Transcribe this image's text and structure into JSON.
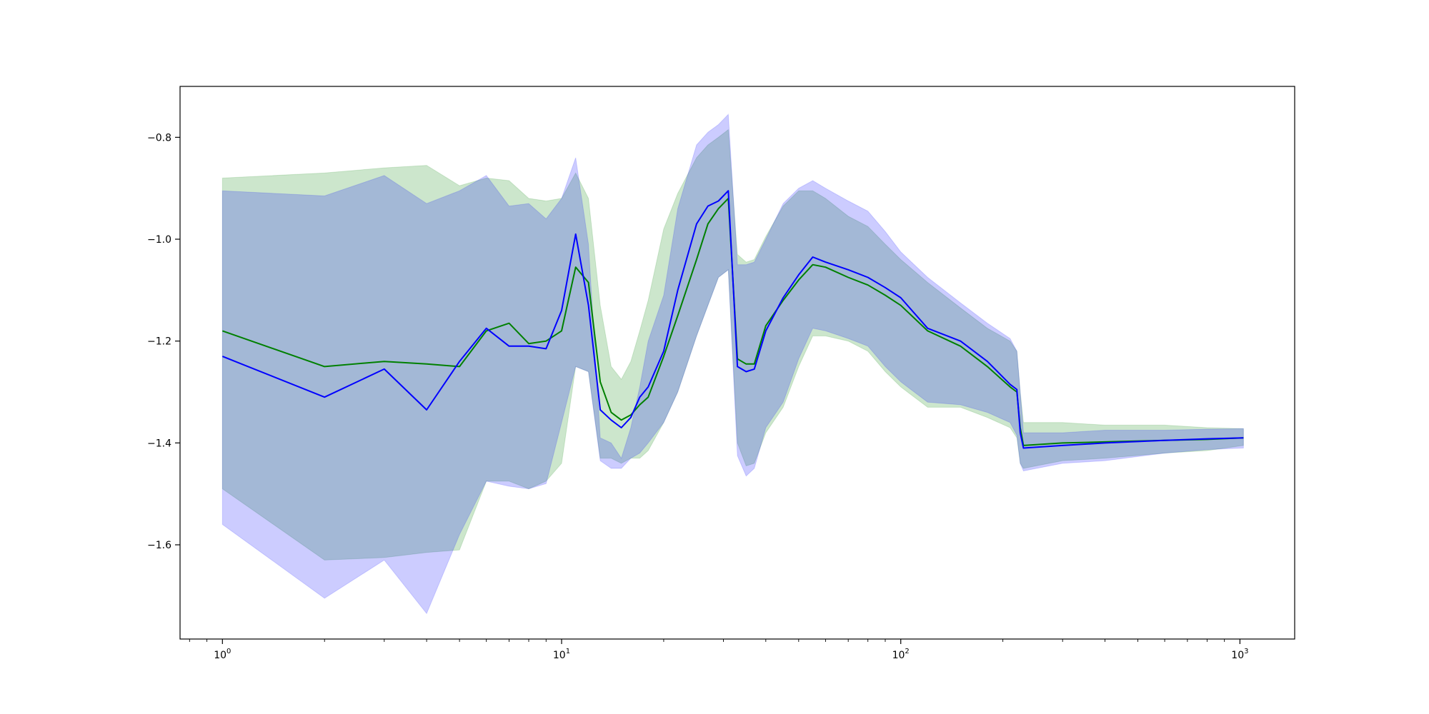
{
  "chart_data": {
    "type": "line",
    "title": "",
    "xlabel": "",
    "ylabel": "",
    "xscale": "log",
    "xlim": [
      0.75,
      1450
    ],
    "ylim": [
      -1.785,
      -0.7
    ],
    "grid": false,
    "legend": "none",
    "x_ticks": [
      {
        "value": 1,
        "base": "10",
        "exp": "0"
      },
      {
        "value": 10,
        "base": "10",
        "exp": "1"
      },
      {
        "value": 100,
        "base": "10",
        "exp": "2"
      },
      {
        "value": 1000,
        "base": "10",
        "exp": "3"
      }
    ],
    "y_ticks": [
      {
        "value": -0.8,
        "label": "−0.8"
      },
      {
        "value": -1.0,
        "label": "−1.0"
      },
      {
        "value": -1.2,
        "label": "−1.2"
      },
      {
        "value": -1.4,
        "label": "−1.4"
      },
      {
        "value": -1.6,
        "label": "−1.6"
      }
    ],
    "series": [
      {
        "color": "#008000",
        "band_color": "#008000",
        "band_opacity": 0.2,
        "x": [
          1,
          2,
          3,
          4,
          5,
          6,
          7,
          8,
          9,
          10,
          11,
          12,
          13,
          14,
          15,
          16,
          17,
          18,
          20,
          22,
          25,
          27,
          29,
          31,
          33,
          35,
          37,
          40,
          45,
          50,
          55,
          60,
          70,
          80,
          90,
          100,
          120,
          150,
          180,
          210,
          220,
          225,
          230,
          300,
          400,
          600,
          800,
          1024
        ],
        "y": [
          -1.18,
          -1.25,
          -1.24,
          -1.245,
          -1.25,
          -1.18,
          -1.165,
          -1.205,
          -1.2,
          -1.18,
          -1.055,
          -1.085,
          -1.28,
          -1.34,
          -1.355,
          -1.345,
          -1.325,
          -1.31,
          -1.23,
          -1.15,
          -1.04,
          -0.97,
          -0.94,
          -0.92,
          -1.235,
          -1.245,
          -1.245,
          -1.17,
          -1.12,
          -1.08,
          -1.05,
          -1.055,
          -1.075,
          -1.09,
          -1.11,
          -1.13,
          -1.18,
          -1.21,
          -1.25,
          -1.29,
          -1.3,
          -1.37,
          -1.405,
          -1.4,
          -1.398,
          -1.395,
          -1.393,
          -1.39
        ],
        "upper": [
          -0.88,
          -0.87,
          -0.86,
          -0.855,
          -0.895,
          -0.88,
          -0.885,
          -0.92,
          -0.925,
          -0.92,
          -0.87,
          -0.92,
          -1.13,
          -1.25,
          -1.275,
          -1.24,
          -1.18,
          -1.12,
          -0.98,
          -0.91,
          -0.84,
          -0.815,
          -0.8,
          -0.785,
          -1.03,
          -1.045,
          -1.04,
          -0.995,
          -0.935,
          -0.905,
          -0.905,
          -0.92,
          -0.955,
          -0.975,
          -1.01,
          -1.04,
          -1.085,
          -1.135,
          -1.175,
          -1.2,
          -1.22,
          -1.3,
          -1.36,
          -1.36,
          -1.365,
          -1.365,
          -1.37,
          -1.372
        ],
        "lower": [
          -1.49,
          -1.63,
          -1.625,
          -1.615,
          -1.61,
          -1.475,
          -1.475,
          -1.49,
          -1.475,
          -1.44,
          -1.25,
          -1.26,
          -1.43,
          -1.43,
          -1.44,
          -1.43,
          -1.43,
          -1.415,
          -1.36,
          -1.3,
          -1.19,
          -1.13,
          -1.075,
          -1.06,
          -1.4,
          -1.445,
          -1.44,
          -1.38,
          -1.33,
          -1.25,
          -1.19,
          -1.19,
          -1.2,
          -1.22,
          -1.26,
          -1.29,
          -1.33,
          -1.33,
          -1.35,
          -1.37,
          -1.39,
          -1.44,
          -1.45,
          -1.435,
          -1.43,
          -1.42,
          -1.415,
          -1.405
        ]
      },
      {
        "color": "#0000ff",
        "band_color": "#0000ff",
        "band_opacity": 0.2,
        "x": [
          1,
          2,
          3,
          4,
          5,
          6,
          7,
          8,
          9,
          10,
          11,
          12,
          13,
          14,
          15,
          16,
          17,
          18,
          20,
          22,
          25,
          27,
          29,
          31,
          33,
          35,
          37,
          40,
          45,
          50,
          55,
          60,
          70,
          80,
          90,
          100,
          120,
          150,
          180,
          210,
          220,
          225,
          230,
          300,
          400,
          600,
          800,
          1024
        ],
        "y": [
          -1.23,
          -1.31,
          -1.255,
          -1.335,
          -1.24,
          -1.175,
          -1.21,
          -1.21,
          -1.215,
          -1.14,
          -0.99,
          -1.13,
          -1.335,
          -1.355,
          -1.37,
          -1.35,
          -1.31,
          -1.29,
          -1.22,
          -1.1,
          -0.97,
          -0.935,
          -0.925,
          -0.905,
          -1.25,
          -1.26,
          -1.255,
          -1.18,
          -1.115,
          -1.07,
          -1.035,
          -1.045,
          -1.06,
          -1.075,
          -1.095,
          -1.115,
          -1.175,
          -1.2,
          -1.24,
          -1.285,
          -1.295,
          -1.38,
          -1.41,
          -1.405,
          -1.4,
          -1.395,
          -1.392,
          -1.39
        ],
        "upper": [
          -0.905,
          -0.915,
          -0.875,
          -0.93,
          -0.905,
          -0.875,
          -0.935,
          -0.93,
          -0.96,
          -0.92,
          -0.84,
          -1.01,
          -1.39,
          -1.4,
          -1.43,
          -1.37,
          -1.29,
          -1.2,
          -1.11,
          -0.94,
          -0.815,
          -0.79,
          -0.775,
          -0.755,
          -1.05,
          -1.05,
          -1.045,
          -1.0,
          -0.93,
          -0.9,
          -0.885,
          -0.9,
          -0.925,
          -0.945,
          -0.985,
          -1.025,
          -1.075,
          -1.125,
          -1.165,
          -1.195,
          -1.22,
          -1.3,
          -1.38,
          -1.38,
          -1.375,
          -1.375,
          -1.373,
          -1.372
        ],
        "lower": [
          -1.56,
          -1.705,
          -1.63,
          -1.735,
          -1.58,
          -1.475,
          -1.485,
          -1.49,
          -1.48,
          -1.36,
          -1.25,
          -1.26,
          -1.435,
          -1.45,
          -1.45,
          -1.43,
          -1.42,
          -1.4,
          -1.36,
          -1.3,
          -1.19,
          -1.13,
          -1.075,
          -1.06,
          -1.425,
          -1.465,
          -1.45,
          -1.37,
          -1.32,
          -1.235,
          -1.175,
          -1.18,
          -1.195,
          -1.21,
          -1.25,
          -1.28,
          -1.32,
          -1.325,
          -1.34,
          -1.36,
          -1.385,
          -1.44,
          -1.455,
          -1.44,
          -1.435,
          -1.42,
          -1.413,
          -1.41
        ]
      }
    ]
  }
}
